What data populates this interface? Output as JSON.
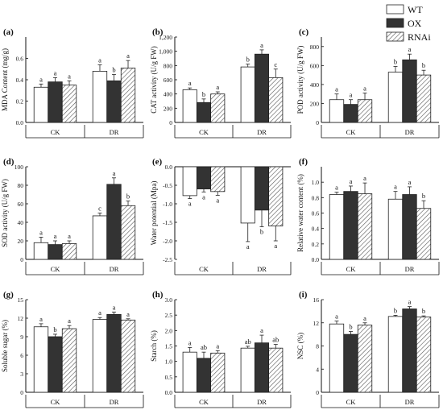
{
  "legend": {
    "entries": [
      {
        "label": "WT",
        "color": "#ffffff",
        "pattern": "none"
      },
      {
        "label": "OX",
        "color": "#333333",
        "pattern": "none"
      },
      {
        "label": "RNAi",
        "color": "#ffffff",
        "pattern": "diagonal-hatch"
      }
    ],
    "placement": "top-right"
  },
  "chart_data": [
    {
      "type": "bar",
      "panel": "(a)",
      "ylabel": "MDA Content (mg/g)",
      "ylim": [
        0,
        0.8
      ],
      "yticks": [
        "0.0",
        "0.2",
        "0.4",
        "0.6"
      ],
      "ytick_values": [
        0,
        0.2,
        0.4,
        0.6
      ],
      "categories": [
        "CK",
        "DR"
      ],
      "series": [
        {
          "name": "WT",
          "values": [
            0.33,
            0.48
          ],
          "errors": [
            0.03,
            0.06
          ]
        },
        {
          "name": "OX",
          "values": [
            0.38,
            0.39
          ],
          "errors": [
            0.04,
            0.06
          ]
        },
        {
          "name": "RNAi",
          "values": [
            0.35,
            0.51
          ],
          "errors": [
            0.04,
            0.07
          ]
        }
      ],
      "letters": [
        [
          "a",
          "a"
        ],
        [
          "a",
          "b"
        ],
        [
          "a",
          "a"
        ]
      ]
    },
    {
      "type": "bar",
      "panel": "(b)",
      "ylabel": "CAT activity (U/g FW)",
      "ylim": [
        0,
        1200
      ],
      "yticks": [
        "0",
        "200",
        "400",
        "600",
        "800",
        "1,000",
        "1,200"
      ],
      "ytick_values": [
        0,
        200,
        400,
        600,
        800,
        1000,
        1200
      ],
      "categories": [
        "CK",
        "DR"
      ],
      "series": [
        {
          "name": "WT",
          "values": [
            460,
            780
          ],
          "errors": [
            25,
            40
          ]
        },
        {
          "name": "OX",
          "values": [
            280,
            960
          ],
          "errors": [
            50,
            60
          ]
        },
        {
          "name": "RNAi",
          "values": [
            400,
            630
          ],
          "errors": [
            30,
            120
          ]
        }
      ],
      "letters": [
        [
          "a",
          "b"
        ],
        [
          "b",
          "a"
        ],
        [
          "a",
          "c"
        ]
      ]
    },
    {
      "type": "bar",
      "panel": "(c)",
      "ylabel": "POD activity (U/g FW)",
      "ylim": [
        0,
        900
      ],
      "yticks": [
        "0",
        "200",
        "400",
        "600",
        "800"
      ],
      "ytick_values": [
        0,
        200,
        400,
        600,
        800
      ],
      "categories": [
        "CK",
        "DR"
      ],
      "series": [
        {
          "name": "WT",
          "values": [
            240,
            530
          ],
          "errors": [
            60,
            60
          ]
        },
        {
          "name": "OX",
          "values": [
            190,
            660
          ],
          "errors": [
            50,
            60
          ]
        },
        {
          "name": "RNAi",
          "values": [
            240,
            500
          ],
          "errors": [
            70,
            50
          ]
        }
      ],
      "letters": [
        [
          "a",
          "b"
        ],
        [
          "a",
          "a"
        ],
        [
          "a",
          "b"
        ]
      ]
    },
    {
      "type": "bar",
      "panel": "(d)",
      "ylabel": "SOD activity (U/g FW)",
      "ylim": [
        0,
        100
      ],
      "yticks": [
        "0",
        "20",
        "40",
        "60",
        "80",
        "100"
      ],
      "ytick_values": [
        0,
        20,
        40,
        60,
        80,
        100
      ],
      "categories": [
        "CK",
        "DR"
      ],
      "series": [
        {
          "name": "WT",
          "values": [
            18,
            47
          ],
          "errors": [
            6,
            3
          ]
        },
        {
          "name": "OX",
          "values": [
            16,
            81
          ],
          "errors": [
            4,
            7
          ]
        },
        {
          "name": "RNAi",
          "values": [
            17,
            58
          ],
          "errors": [
            3,
            5
          ]
        }
      ],
      "letters": [
        [
          "a",
          "c"
        ],
        [
          "a",
          "a"
        ],
        [
          "a",
          "b"
        ]
      ]
    },
    {
      "type": "bar",
      "panel": "(e)",
      "ylabel": "Water potential (Mpa)",
      "ylim": [
        -2.5,
        0
      ],
      "yticks": [
        "0.0",
        "-0.5",
        "-1.0",
        "-1.5",
        "-2.0",
        "-2.5"
      ],
      "ytick_values": [
        0,
        -0.5,
        -1,
        -1.5,
        -2,
        -2.5
      ],
      "categories": [
        "CK",
        "DR"
      ],
      "series": [
        {
          "name": "WT",
          "values": [
            -0.78,
            -1.52
          ],
          "errors": [
            0.08,
            0.5
          ]
        },
        {
          "name": "OX",
          "values": [
            -0.6,
            -1.17
          ],
          "errors": [
            0.08,
            0.45
          ]
        },
        {
          "name": "RNAi",
          "values": [
            -0.67,
            -1.6
          ],
          "errors": [
            0.1,
            0.4
          ]
        }
      ],
      "letters": [
        [
          "a",
          "a"
        ],
        [
          "a",
          "b"
        ],
        [
          "a",
          "a"
        ]
      ]
    },
    {
      "type": "bar",
      "panel": "(f)",
      "ylabel": "Relative water content (%)",
      "ylim": [
        0,
        1.2
      ],
      "yticks": [
        "0.0",
        "0.2",
        "0.4",
        "0.6",
        "0.8",
        "1.0"
      ],
      "ytick_values": [
        0,
        0.2,
        0.4,
        0.6,
        0.8,
        1.0
      ],
      "categories": [
        "CK",
        "DR"
      ],
      "series": [
        {
          "name": "WT",
          "values": [
            0.84,
            0.78
          ],
          "errors": [
            0.03,
            0.1
          ]
        },
        {
          "name": "OX",
          "values": [
            0.88,
            0.84
          ],
          "errors": [
            0.07,
            0.1
          ]
        },
        {
          "name": "RNAi",
          "values": [
            0.85,
            0.66
          ],
          "errors": [
            0.14,
            0.1
          ]
        }
      ],
      "letters": [
        [
          "a",
          "a"
        ],
        [
          "a",
          "a"
        ],
        [
          "a",
          "b"
        ]
      ]
    },
    {
      "type": "bar",
      "panel": "(g)",
      "ylabel": "Soluble sugar (%)",
      "ylim": [
        0,
        15
      ],
      "yticks": [
        "0",
        "3",
        "6",
        "9",
        "12",
        "15"
      ],
      "ytick_values": [
        0,
        3,
        6,
        9,
        12,
        15
      ],
      "categories": [
        "CK",
        "DR"
      ],
      "series": [
        {
          "name": "WT",
          "values": [
            10.6,
            11.8
          ],
          "errors": [
            0.5,
            0.3
          ]
        },
        {
          "name": "OX",
          "values": [
            9.0,
            12.6
          ],
          "errors": [
            0.4,
            0.4
          ]
        },
        {
          "name": "RNAi",
          "values": [
            10.3,
            11.7
          ],
          "errors": [
            0.5,
            0.2
          ]
        }
      ],
      "letters": [
        [
          "a",
          "a"
        ],
        [
          "b",
          "a"
        ],
        [
          "a",
          "a"
        ]
      ]
    },
    {
      "type": "bar",
      "panel": "(h)",
      "ylabel": "Starch (%)",
      "ylim": [
        0,
        3.0
      ],
      "yticks": [
        "0.0",
        "0.5",
        "1.0",
        "1.5",
        "2.0",
        "2.5",
        "3.0"
      ],
      "ytick_values": [
        0,
        0.5,
        1,
        1.5,
        2,
        2.5,
        3
      ],
      "categories": [
        "CK",
        "DR"
      ],
      "series": [
        {
          "name": "WT",
          "values": [
            1.3,
            1.43
          ],
          "errors": [
            0.15,
            0.06
          ]
        },
        {
          "name": "OX",
          "values": [
            1.1,
            1.6
          ],
          "errors": [
            0.2,
            0.25
          ]
        },
        {
          "name": "RNAi",
          "values": [
            1.27,
            1.43
          ],
          "errors": [
            0.08,
            0.12
          ]
        }
      ],
      "letters": [
        [
          "a",
          "ab"
        ],
        [
          "ab",
          "a"
        ],
        [
          "a",
          "ab"
        ]
      ]
    },
    {
      "type": "bar",
      "panel": "(i)",
      "ylabel": "NSC (%)",
      "ylim": [
        0,
        16
      ],
      "yticks": [
        "0",
        "4",
        "8",
        "12",
        "16"
      ],
      "ytick_values": [
        0,
        4,
        8,
        12,
        16
      ],
      "categories": [
        "CK",
        "DR"
      ],
      "series": [
        {
          "name": "WT",
          "values": [
            11.8,
            13.1
          ],
          "errors": [
            0.5,
            0.2
          ]
        },
        {
          "name": "OX",
          "values": [
            10.0,
            14.4
          ],
          "errors": [
            0.5,
            0.4
          ]
        },
        {
          "name": "RNAi",
          "values": [
            11.6,
            13.0
          ],
          "errors": [
            0.4,
            0.2
          ]
        }
      ],
      "letters": [
        [
          "a",
          "b"
        ],
        [
          "b",
          "a"
        ],
        [
          "a",
          "b"
        ]
      ]
    }
  ]
}
